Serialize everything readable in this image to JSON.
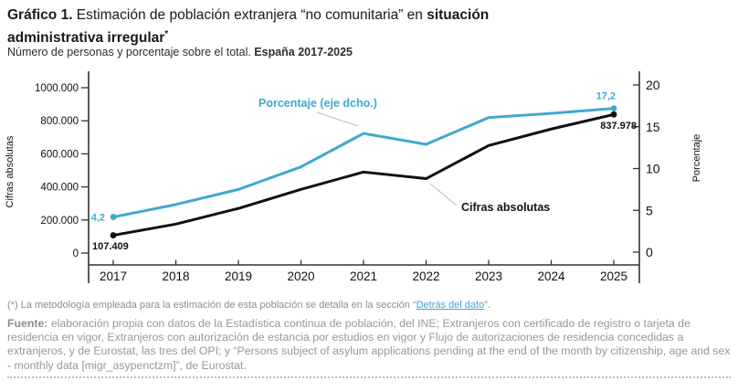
{
  "header": {
    "title_bold_prefix": "Gráfico 1.",
    "title_regular": " Estimación de población extranjera “no comunitaria” en ",
    "title_bold_emphasis": "situación administrativa irregular",
    "title_footnote_marker": "*",
    "subtitle_regular": "Número de personas y porcentaje sobre el total. ",
    "subtitle_bold": "España 2017-2025"
  },
  "chart_data": {
    "type": "line",
    "title": "Estimación de población extranjera “no comunitaria” en situación administrativa irregular. España 2017-2025",
    "x": [
      "2017",
      "2018",
      "2019",
      "2020",
      "2021",
      "2022",
      "2023",
      "2024",
      "2025"
    ],
    "series": [
      {
        "name": "Cifras absolutas",
        "axis": "left",
        "color": "#111111",
        "values": [
          107409,
          175000,
          270000,
          385000,
          490000,
          450000,
          650000,
          750000,
          837978
        ]
      },
      {
        "name": "Porcentaje (eje dcho.)",
        "axis": "right",
        "color": "#3fa9cc",
        "values": [
          4.2,
          5.7,
          7.5,
          10.2,
          14.2,
          12.9,
          16.1,
          16.6,
          17.2
        ]
      }
    ],
    "left_axis": {
      "label": "Cifras absolutas",
      "min": 0,
      "max": 1000000,
      "tick_values": [
        0,
        200000,
        400000,
        600000,
        800000,
        1000000
      ],
      "tick_labels": [
        "0",
        "200.000",
        "400.000",
        "600.000",
        "800.000",
        "1000.000"
      ]
    },
    "right_axis": {
      "label": "Porcentaje",
      "min": 0,
      "max": 20,
      "tick_values": [
        0,
        5,
        10,
        15,
        20
      ],
      "tick_labels": [
        "0",
        "5",
        "10",
        "15",
        "20"
      ]
    },
    "point_labels": {
      "black_first": "107.409",
      "black_last": "837.978",
      "blue_first": "4,2",
      "blue_last": "17,2"
    },
    "annotations": {
      "blue_label": "Porcentaje (eje dcho.)",
      "black_label": "Cifras absolutas"
    },
    "grid": false,
    "legend_position": "inline-annotations"
  },
  "footnote": {
    "marker": "(*)",
    "text_before_link": " La metodología empleada para la estimación de esta población se detalla en la sección “",
    "link_text": "Detrás del dato",
    "text_after_link": "”."
  },
  "source": {
    "label": "Fuente:",
    "text": " elaboración propia con datos de la Estadística continua de población, del INE; Extranjeros con certificado de registro o tarjeta de residencia en vigor, Extranjeros con autorización de estancia por estudios en vigor y Flujo de autorizaciones de residencia concedidas a extranjeros, y de Eurostat, las tres del OPI; y “Persons subject of asylum applications pending at the end of the month by citizenship, age and sex - monthly data [migr_asypenctzm]”, de Eurostat."
  },
  "colors": {
    "accent_blue": "#3fa9cc",
    "black_line": "#111111",
    "axis": "#333333",
    "gray_text": "#8d8d8d",
    "callout": "#c9c9c9"
  }
}
